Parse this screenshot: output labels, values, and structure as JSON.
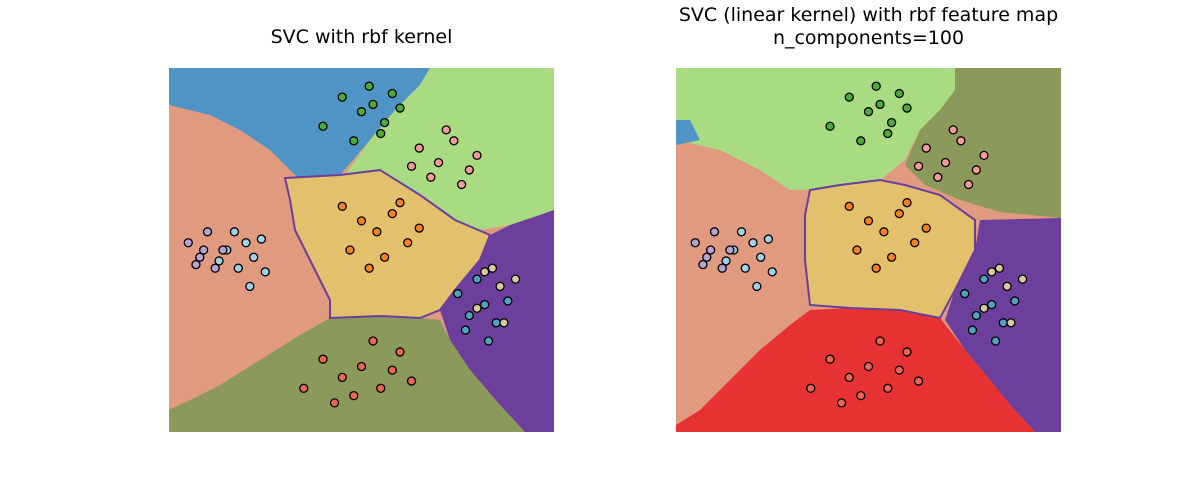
{
  "chart_data": [
    {
      "type": "scatter",
      "title": [
        "SVC with rbf kernel"
      ],
      "xlim": [
        0,
        100
      ],
      "ylim": [
        0,
        100
      ],
      "series": [
        {
          "color": "#4dab3c",
          "x": [
            45,
            50,
            53,
            56,
            58,
            48,
            55,
            60,
            40,
            52
          ],
          "values": [
            92,
            88,
            90,
            85,
            93,
            80,
            82,
            89,
            84,
            95
          ]
        },
        {
          "color": "#f59c9a",
          "x": [
            65,
            70,
            74,
            78,
            68,
            72,
            80,
            63,
            76
          ],
          "values": [
            78,
            74,
            80,
            72,
            70,
            83,
            76,
            73,
            68
          ]
        },
        {
          "color": "#f7811a",
          "x": [
            50,
            54,
            58,
            62,
            47,
            56,
            60,
            52,
            65,
            45
          ],
          "values": [
            58,
            55,
            60,
            52,
            50,
            48,
            63,
            45,
            56,
            62
          ]
        },
        {
          "color": "#a3d0e4",
          "x": [
            15,
            18,
            20,
            22,
            25,
            17,
            21,
            13,
            24
          ],
          "values": [
            50,
            45,
            52,
            48,
            44,
            55,
            40,
            47,
            53
          ]
        },
        {
          "color": "#b5a4cf",
          "x": [
            5,
            8,
            10,
            12,
            9,
            14,
            7
          ],
          "values": [
            52,
            48,
            55,
            45,
            50,
            50,
            46
          ]
        },
        {
          "color": "#4fa3bd",
          "x": [
            75,
            78,
            82,
            85,
            80,
            77,
            88,
            83
          ],
          "values": [
            38,
            32,
            35,
            30,
            42,
            28,
            36,
            25
          ]
        },
        {
          "color": "#d6cb9c",
          "x": [
            84,
            86,
            80,
            90,
            87,
            82
          ],
          "values": [
            45,
            40,
            34,
            42,
            30,
            44
          ]
        },
        {
          "color": "#ec6552",
          "x": [
            40,
            45,
            50,
            55,
            60,
            48,
            53,
            58,
            43,
            63,
            35
          ],
          "values": [
            20,
            15,
            18,
            12,
            22,
            10,
            25,
            17,
            8,
            14,
            12
          ]
        }
      ]
    },
    {
      "type": "scatter",
      "title": [
        "SVC (linear kernel) with rbf feature map",
        "n_components=100"
      ],
      "xlim": [
        0,
        100
      ],
      "ylim": [
        0,
        100
      ],
      "series": [
        {
          "color": "#4dab3c",
          "x": [
            45,
            50,
            53,
            56,
            58,
            48,
            55,
            60,
            40,
            52
          ],
          "values": [
            92,
            88,
            90,
            85,
            93,
            80,
            82,
            89,
            84,
            95
          ]
        },
        {
          "color": "#f59c9a",
          "x": [
            65,
            70,
            74,
            78,
            68,
            72,
            80,
            63,
            76
          ],
          "values": [
            78,
            74,
            80,
            72,
            70,
            83,
            76,
            73,
            68
          ]
        },
        {
          "color": "#f7811a",
          "x": [
            50,
            54,
            58,
            62,
            47,
            56,
            60,
            52,
            65,
            45
          ],
          "values": [
            58,
            55,
            60,
            52,
            50,
            48,
            63,
            45,
            56,
            62
          ]
        },
        {
          "color": "#a3d0e4",
          "x": [
            15,
            18,
            20,
            22,
            25,
            17,
            21,
            13,
            24
          ],
          "values": [
            50,
            45,
            52,
            48,
            44,
            55,
            40,
            47,
            53
          ]
        },
        {
          "color": "#b5a4cf",
          "x": [
            5,
            8,
            10,
            12,
            9,
            14,
            7
          ],
          "values": [
            52,
            48,
            55,
            45,
            50,
            50,
            46
          ]
        },
        {
          "color": "#4fa3bd",
          "x": [
            75,
            78,
            82,
            85,
            80,
            77,
            88,
            83
          ],
          "values": [
            38,
            32,
            35,
            30,
            42,
            28,
            36,
            25
          ]
        },
        {
          "color": "#d6cb9c",
          "x": [
            84,
            86,
            80,
            90,
            87,
            82
          ],
          "values": [
            45,
            40,
            34,
            42,
            30,
            44
          ]
        },
        {
          "color": "#ec6552",
          "x": [
            40,
            45,
            50,
            55,
            60,
            48,
            53,
            58,
            43,
            63,
            35
          ],
          "values": [
            20,
            15,
            18,
            12,
            22,
            10,
            25,
            17,
            8,
            14,
            12
          ]
        }
      ]
    }
  ]
}
